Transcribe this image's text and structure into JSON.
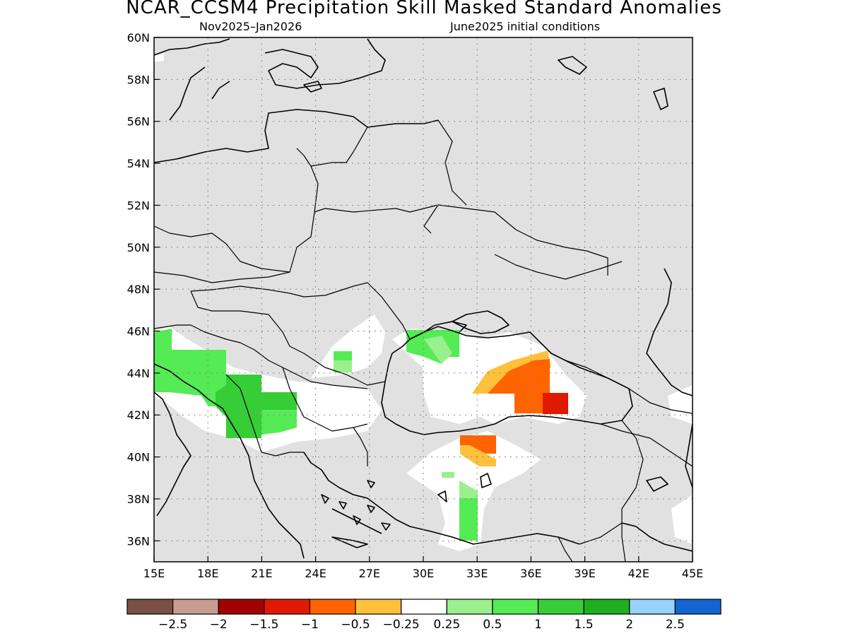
{
  "title": "NCAR_CCSM4 Precipitation Skill Masked Standard Anomalies",
  "subtitle_left": "Nov2025–Jan2026",
  "subtitle_right": "June2025 initial conditions",
  "map": {
    "lon_range": [
      15,
      45
    ],
    "lat_range": [
      35,
      60
    ],
    "x_ticks": [
      "15E",
      "18E",
      "21E",
      "24E",
      "27E",
      "30E",
      "33E",
      "36E",
      "39E",
      "42E",
      "45E"
    ],
    "y_ticks": [
      "60N",
      "58N",
      "56N",
      "54N",
      "52N",
      "50N",
      "48N",
      "46N",
      "44N",
      "42N",
      "40N",
      "38N",
      "36N"
    ],
    "grid": "dotted",
    "masked_color": "#e1e1e1",
    "anomaly_cells": [
      {
        "lon": [
          15,
          16
        ],
        "lat": [
          42.5,
          46
        ],
        "level": "0.5..1"
      },
      {
        "lon": [
          16,
          19
        ],
        "lat": [
          42,
          45
        ],
        "level": "0.5..1"
      },
      {
        "lon": [
          19,
          21
        ],
        "lat": [
          41,
          44
        ],
        "level": "1..1.5"
      },
      {
        "lon": [
          21,
          22
        ],
        "lat": [
          41,
          43
        ],
        "level": "1..1.5"
      },
      {
        "lon": [
          22,
          23
        ],
        "lat": [
          41,
          42.5
        ],
        "level": "0.5..1"
      },
      {
        "lon": [
          25,
          26
        ],
        "lat": [
          44,
          45
        ],
        "level": "0.5..1"
      },
      {
        "lon": [
          25,
          26
        ],
        "lat": [
          43.5,
          44.2
        ],
        "level": "0.25..0.5"
      },
      {
        "lon": [
          29,
          31.5
        ],
        "lat": [
          44.8,
          46
        ],
        "level": "0.5..1"
      },
      {
        "lon": [
          31,
          32
        ],
        "lat": [
          44.5,
          45.2
        ],
        "level": "0.25..0.5"
      },
      {
        "lon": [
          32,
          33
        ],
        "lat": [
          36,
          38.5
        ],
        "level": "0.5..1"
      },
      {
        "lon": [
          32,
          34
        ],
        "lat": [
          39.5,
          41
        ],
        "level": "-1..-0.5"
      },
      {
        "lon": [
          35,
          37
        ],
        "lat": [
          42,
          44.5
        ],
        "level": "-1..-0.5"
      },
      {
        "lon": [
          37,
          38
        ],
        "lat": [
          42,
          43
        ],
        "level": "-1.5..-1"
      }
    ]
  },
  "colorbar": {
    "labels": [
      "-2.5",
      "-2",
      "-1.5",
      "-1",
      "-0.5",
      "-0.25",
      "0.25",
      "0.5",
      "1",
      "1.5",
      "2",
      "2.5"
    ],
    "colors": [
      "#7a4f45",
      "#c79b8e",
      "#a30000",
      "#e01a00",
      "#ff6400",
      "#ffc03c",
      "#ffffff",
      "#99f08c",
      "#55eb55",
      "#37cd37",
      "#1eaf1e",
      "#96d2fa",
      "#1464d2"
    ]
  }
}
